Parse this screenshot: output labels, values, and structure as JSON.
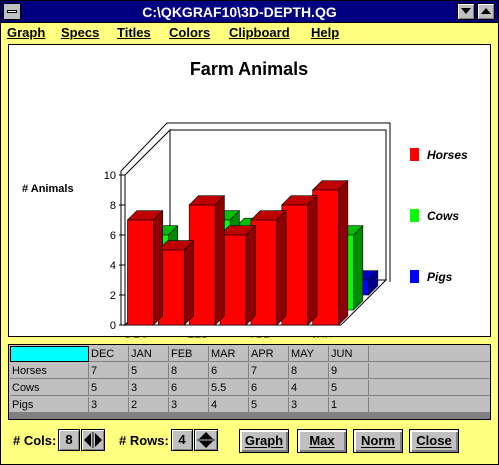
{
  "window": {
    "title": "C:\\QKGRAF10\\3D-DEPTH.QG"
  },
  "menu": [
    "Graph",
    "Specs",
    "Titles",
    "Colors",
    "Clipboard",
    "Help"
  ],
  "icons": {
    "system_menu": "system-menu-icon",
    "minimize": "minimize-arrow-icon",
    "maximize": "maximize-arrow-icon",
    "spin_horizontal": "left-right-spinner-icon",
    "spin_vertical": "up-down-spinner-icon"
  },
  "colors": {
    "titlebar": "#000080",
    "window_bg": "#ffff80",
    "horses": "#ff0000",
    "cows": "#00ff00",
    "pigs": "#0000ff",
    "selected_cell": "#00ffff"
  },
  "chart_data": {
    "type": "bar",
    "subtype": "3d-depth",
    "title": "Farm Animals",
    "ylabel": "# Animals",
    "xlabel": "",
    "ylim": [
      0,
      10
    ],
    "yticks": [
      "0",
      "2",
      "4",
      "6",
      "8",
      "10"
    ],
    "categories": [
      "DEC",
      "JAN",
      "FEB",
      "MAR",
      "APR",
      "MAY",
      "JUN"
    ],
    "series": [
      {
        "name": "Horses",
        "values": [
          7,
          5,
          8,
          6,
          7,
          8,
          9
        ],
        "color": "#ff0000"
      },
      {
        "name": "Cows",
        "values": [
          5,
          3,
          6,
          5.5,
          6,
          4,
          5
        ],
        "color": "#00ff00"
      },
      {
        "name": "Pigs",
        "values": [
          3,
          2,
          3,
          4,
          5,
          3,
          1
        ],
        "color": "#0000ff"
      }
    ],
    "legend_position": "right",
    "grid": false
  },
  "grid": {
    "columns": [
      "DEC",
      "JAN",
      "FEB",
      "MAR",
      "APR",
      "MAY",
      "JUN"
    ],
    "rows": [
      {
        "label": "Horses",
        "values": [
          "7",
          "5",
          "8",
          "6",
          "7",
          "8",
          "9"
        ]
      },
      {
        "label": "Cows",
        "values": [
          "5",
          "3",
          "6",
          "5.5",
          "6",
          "4",
          "5"
        ]
      },
      {
        "label": "Pigs",
        "values": [
          "3",
          "2",
          "3",
          "4",
          "5",
          "3",
          "1"
        ]
      }
    ]
  },
  "controls": {
    "cols_label": "# Cols:",
    "cols_value": "8",
    "rows_label": "# Rows:",
    "rows_value": "4",
    "buttons": [
      "Graph",
      "Max",
      "Norm",
      "Close"
    ]
  }
}
